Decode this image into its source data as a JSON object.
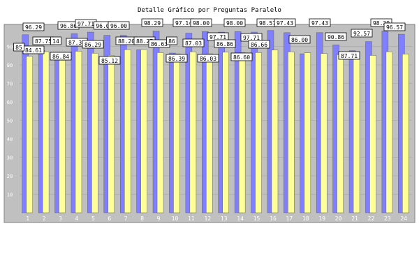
{
  "chart_data": {
    "type": "bar",
    "title": "Detalle Gráfico por Preguntas Paralelo",
    "xlabel": "",
    "ylabel": "",
    "ylim": [
      0,
      100
    ],
    "yticks": [
      10,
      20,
      30,
      40,
      50,
      60,
      70,
      80,
      90
    ],
    "grid": true,
    "legend": "none",
    "categories": [
      "1",
      "2",
      "3",
      "4",
      "5",
      "6",
      "7",
      "8",
      "9",
      "10",
      "11",
      "12",
      "13",
      "14",
      "15",
      "16",
      "17",
      "18",
      "19",
      "20",
      "21",
      "22",
      "23",
      "24"
    ],
    "series": [
      {
        "color": "#8080ff",
        "values": [
          96.29,
          87.75,
          86.84,
          96.86,
          97.71,
          96.0,
          96.0,
          88.2,
          98.29,
          86.39,
          97.14,
          98.0,
          97.71,
          98.0,
          97.71,
          98.57,
          97.43,
          86.0,
          97.43,
          90.86,
          87.71,
          92.57,
          98.29,
          96.57
        ]
      },
      {
        "color": "#ffff99",
        "values": [
          84.61,
          87.14,
          82.5,
          87.37,
          86.29,
          85.12,
          88.2,
          88.27,
          86.63,
          86.0,
          87.03,
          86.03,
          86.86,
          86.6,
          86.66,
          88.0,
          87.0,
          86.5,
          86.18,
          85.5,
          86.3,
          85.12,
          87.09,
          85.77
        ]
      }
    ],
    "data_labels": [
      {
        "text": "96.29"
      },
      {
        "text": "84.61"
      },
      {
        "text": "85"
      },
      {
        "text": "87.75"
      },
      {
        "text": "14"
      },
      {
        "text": "86.84"
      },
      {
        "text": "96.86"
      },
      {
        "text": "87.37"
      },
      {
        "text": "97.71"
      },
      {
        "text": "86.29"
      },
      {
        "text": "96.0"
      },
      {
        "text": "85.12"
      },
      {
        "text": "96.00"
      },
      {
        "text": "88.20"
      },
      {
        "text": "88.27"
      },
      {
        "text": "98.29"
      },
      {
        "text": "86.63"
      },
      {
        "text": "86"
      },
      {
        "text": "86.39"
      },
      {
        "text": "97.14"
      },
      {
        "text": "87.03"
      },
      {
        "text": "98.00"
      },
      {
        "text": "86.03"
      },
      {
        "text": "97.71"
      },
      {
        "text": "86.86"
      },
      {
        "text": "98.00"
      },
      {
        "text": "86.60"
      },
      {
        "text": "97.71"
      },
      {
        "text": "86.66"
      },
      {
        "text": "98.57"
      },
      {
        "text": "97.43"
      },
      {
        "text": "86.00"
      },
      {
        "text": "97.43"
      },
      {
        "text": "90.86"
      },
      {
        "text": "87.71"
      },
      {
        "text": "92.57"
      },
      {
        "text": "98.29"
      },
      {
        "text": "96.57"
      }
    ]
  }
}
